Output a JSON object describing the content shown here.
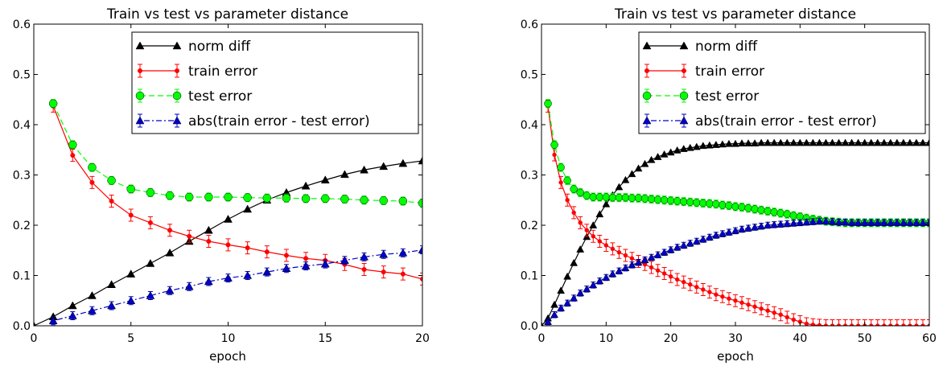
{
  "chart_data": [
    {
      "type": "line",
      "title": "Train vs test vs parameter distance",
      "xlabel": "epoch",
      "ylabel": "",
      "xlim": [
        0,
        20
      ],
      "ylim": [
        0,
        0.6
      ],
      "xticks": [
        "0",
        "5",
        "10",
        "15",
        "20"
      ],
      "yticks": [
        "0.0",
        "0.1",
        "0.2",
        "0.3",
        "0.4",
        "0.5",
        "0.6"
      ],
      "grid": false,
      "legend_position": "top-right",
      "x": [
        0,
        1,
        2,
        3,
        4,
        5,
        6,
        7,
        8,
        9,
        10,
        11,
        12,
        13,
        14,
        15,
        16,
        17,
        18,
        19,
        20
      ],
      "series": [
        {
          "name": "norm diff",
          "color": "#000000",
          "marker": "triangle",
          "linestyle": "solid",
          "errorbars": false,
          "values": [
            0.0,
            0.018,
            0.04,
            0.06,
            0.082,
            0.103,
            0.124,
            0.145,
            0.168,
            0.19,
            0.212,
            0.232,
            0.25,
            0.265,
            0.278,
            0.29,
            0.301,
            0.31,
            0.317,
            0.323,
            0.328
          ]
        },
        {
          "name": "train error",
          "color": "#ff0000",
          "marker": "dot",
          "linestyle": "solid",
          "errorbars": true,
          "err": 0.012,
          "values": [
            null,
            0.437,
            0.339,
            0.285,
            0.248,
            0.22,
            0.205,
            0.19,
            0.178,
            0.168,
            0.161,
            0.155,
            0.147,
            0.14,
            0.134,
            0.13,
            0.122,
            0.112,
            0.107,
            0.103,
            0.093
          ]
        },
        {
          "name": "test error",
          "color": "#00ff00",
          "marker": "circle",
          "linestyle": "dashed",
          "errorbars": true,
          "err": 0.008,
          "values": [
            null,
            0.442,
            0.36,
            0.315,
            0.289,
            0.272,
            0.265,
            0.259,
            0.256,
            0.256,
            0.256,
            0.255,
            0.254,
            0.254,
            0.253,
            0.253,
            0.252,
            0.25,
            0.249,
            0.248,
            0.244
          ]
        },
        {
          "name": "abs(train error - test error)",
          "color": "#0000cc",
          "marker": "triangle",
          "linestyle": "dashdot",
          "errorbars": true,
          "err": 0.008,
          "values": [
            null,
            0.01,
            0.02,
            0.03,
            0.04,
            0.05,
            0.06,
            0.07,
            0.078,
            0.088,
            0.095,
            0.1,
            0.107,
            0.114,
            0.119,
            0.123,
            0.13,
            0.137,
            0.142,
            0.145,
            0.151
          ]
        }
      ]
    },
    {
      "type": "line",
      "title": "Train vs test vs parameter distance",
      "xlabel": "epoch",
      "ylabel": "",
      "xlim": [
        0,
        60
      ],
      "ylim": [
        0,
        0.6
      ],
      "xticks": [
        "0",
        "10",
        "20",
        "30",
        "40",
        "50",
        "60"
      ],
      "yticks": [
        "0.0",
        "0.1",
        "0.2",
        "0.3",
        "0.4",
        "0.5",
        "0.6"
      ],
      "grid": false,
      "legend_position": "top-right",
      "x": [
        0,
        1,
        2,
        3,
        4,
        5,
        6,
        7,
        8,
        9,
        10,
        11,
        12,
        13,
        14,
        15,
        16,
        17,
        18,
        19,
        20,
        21,
        22,
        23,
        24,
        25,
        26,
        27,
        28,
        29,
        30,
        31,
        32,
        33,
        34,
        35,
        36,
        37,
        38,
        39,
        40,
        41,
        42,
        43,
        44,
        45,
        46,
        47,
        48,
        49,
        50,
        51,
        52,
        53,
        54,
        55,
        56,
        57,
        58,
        59,
        60
      ],
      "series": [
        {
          "name": "norm diff",
          "color": "#000000",
          "marker": "triangle",
          "linestyle": "solid",
          "errorbars": false,
          "values": [
            0.0,
            0.015,
            0.042,
            0.07,
            0.098,
            0.125,
            0.152,
            0.177,
            0.2,
            0.222,
            0.242,
            0.26,
            0.276,
            0.29,
            0.302,
            0.313,
            0.322,
            0.33,
            0.336,
            0.341,
            0.345,
            0.349,
            0.352,
            0.354,
            0.356,
            0.358,
            0.359,
            0.36,
            0.361,
            0.362,
            0.362,
            0.363,
            0.363,
            0.363,
            0.364,
            0.364,
            0.364,
            0.364,
            0.364,
            0.364,
            0.364,
            0.364,
            0.364,
            0.364,
            0.364,
            0.364,
            0.364,
            0.364,
            0.364,
            0.364,
            0.364,
            0.364,
            0.364,
            0.364,
            0.364,
            0.364,
            0.364,
            0.364,
            0.364,
            0.364,
            0.364
          ]
        },
        {
          "name": "train error",
          "color": "#ff0000",
          "marker": "dot",
          "linestyle": "solid",
          "errorbars": true,
          "err": 0.012,
          "values": [
            null,
            0.437,
            0.34,
            0.285,
            0.25,
            0.225,
            0.205,
            0.19,
            0.178,
            0.168,
            0.16,
            0.153,
            0.146,
            0.14,
            0.134,
            0.128,
            0.122,
            0.116,
            0.11,
            0.104,
            0.098,
            0.092,
            0.087,
            0.082,
            0.077,
            0.072,
            0.067,
            0.062,
            0.058,
            0.054,
            0.05,
            0.046,
            0.042,
            0.038,
            0.034,
            0.03,
            0.026,
            0.022,
            0.017,
            0.012,
            0.008,
            0.004,
            0.002,
            0.001,
            0.0,
            0.0,
            0.0,
            0.0,
            0.0,
            0.0,
            0.0,
            0.0,
            0.0,
            0.0,
            0.0,
            0.0,
            0.0,
            0.0,
            0.0,
            0.0,
            0.0
          ]
        },
        {
          "name": "test error",
          "color": "#00ff00",
          "marker": "circle",
          "linestyle": "dashed",
          "errorbars": true,
          "err": 0.008,
          "values": [
            null,
            0.442,
            0.36,
            0.315,
            0.289,
            0.272,
            0.265,
            0.259,
            0.256,
            0.256,
            0.256,
            0.255,
            0.255,
            0.255,
            0.254,
            0.254,
            0.253,
            0.252,
            0.251,
            0.25,
            0.249,
            0.248,
            0.247,
            0.246,
            0.245,
            0.244,
            0.243,
            0.242,
            0.24,
            0.239,
            0.237,
            0.236,
            0.234,
            0.232,
            0.23,
            0.228,
            0.226,
            0.224,
            0.222,
            0.219,
            0.217,
            0.214,
            0.212,
            0.21,
            0.208,
            0.207,
            0.206,
            0.205,
            0.205,
            0.205,
            0.205,
            0.205,
            0.205,
            0.205,
            0.205,
            0.205,
            0.205,
            0.205,
            0.205,
            0.205,
            0.205
          ]
        },
        {
          "name": "abs(train error - test error)",
          "color": "#0000cc",
          "marker": "triangle",
          "linestyle": "dashdot",
          "errorbars": true,
          "err": 0.006,
          "values": [
            null,
            0.008,
            0.022,
            0.035,
            0.045,
            0.055,
            0.065,
            0.073,
            0.081,
            0.089,
            0.096,
            0.103,
            0.109,
            0.115,
            0.121,
            0.126,
            0.131,
            0.136,
            0.141,
            0.146,
            0.151,
            0.156,
            0.16,
            0.164,
            0.168,
            0.172,
            0.176,
            0.18,
            0.183,
            0.186,
            0.189,
            0.192,
            0.194,
            0.196,
            0.198,
            0.2,
            0.201,
            0.202,
            0.203,
            0.204,
            0.205,
            0.206,
            0.207,
            0.208,
            0.208,
            0.207,
            0.206,
            0.206,
            0.205,
            0.205,
            0.205,
            0.205,
            0.205,
            0.205,
            0.205,
            0.205,
            0.205,
            0.205,
            0.205,
            0.205,
            0.205
          ]
        }
      ]
    }
  ]
}
